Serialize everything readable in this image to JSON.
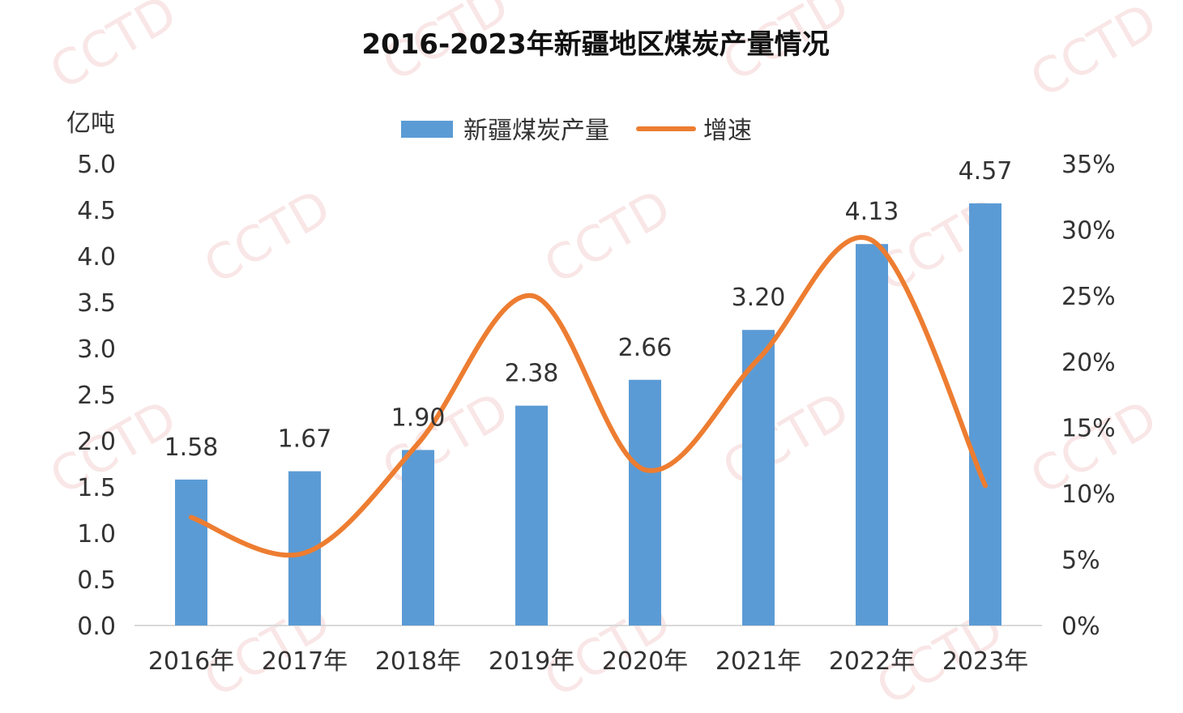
{
  "watermark": "CCTD",
  "chart_data": {
    "type": "bar+line",
    "title": "2016-2023年新疆地区煤炭产量情况",
    "y_unit_label": "亿吨",
    "categories": [
      "2016年",
      "2017年",
      "2018年",
      "2019年",
      "2020年",
      "2021年",
      "2022年",
      "2023年"
    ],
    "series": [
      {
        "name": "新疆煤炭产量",
        "type": "bar",
        "axis": "left",
        "values": [
          1.58,
          1.67,
          1.9,
          2.38,
          2.66,
          3.2,
          4.13,
          4.57
        ],
        "labels": [
          "1.58",
          "1.67",
          "1.90",
          "2.38",
          "2.66",
          "3.20",
          "4.13",
          "4.57"
        ],
        "color": "#5b9bd5"
      },
      {
        "name": "增速",
        "type": "line",
        "axis": "right",
        "values": [
          8.2,
          5.5,
          13.8,
          25.0,
          11.8,
          20.2,
          29.2,
          10.6
        ],
        "color": "#ed7d31"
      }
    ],
    "y_left": {
      "min": 0,
      "max": 5,
      "ticks": [
        "0.0",
        "0.5",
        "1.0",
        "1.5",
        "2.0",
        "2.5",
        "3.0",
        "3.5",
        "4.0",
        "4.5",
        "5.0"
      ]
    },
    "y_right": {
      "min": 0,
      "max": 35,
      "ticks": [
        "0%",
        "5%",
        "10%",
        "15%",
        "20%",
        "25%",
        "30%",
        "35%"
      ]
    },
    "legend": "top-center"
  }
}
